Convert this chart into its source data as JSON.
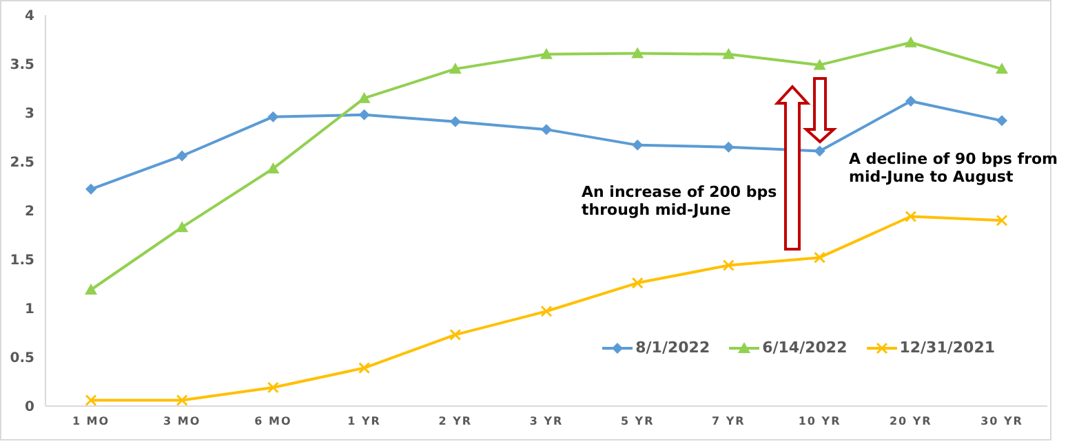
{
  "chart_data": {
    "type": "line",
    "categories": [
      "1 MO",
      "3 MO",
      "6 MO",
      "1 YR",
      "2 YR",
      "3 YR",
      "5 YR",
      "7 YR",
      "10 YR",
      "20 YR",
      "30 YR"
    ],
    "series": [
      {
        "name": "8/1/2022",
        "color": "#5b9bd5",
        "marker": "diamond",
        "values": [
          2.22,
          2.56,
          2.96,
          2.98,
          2.91,
          2.83,
          2.67,
          2.65,
          2.61,
          3.12,
          2.92
        ]
      },
      {
        "name": "6/14/2022",
        "color": "#92d050",
        "marker": "triangle",
        "values": [
          1.19,
          1.83,
          2.43,
          3.15,
          3.45,
          3.6,
          3.61,
          3.6,
          3.49,
          3.72,
          3.45
        ]
      },
      {
        "name": "12/31/2021",
        "color": "#ffc000",
        "marker": "cross",
        "values": [
          0.06,
          0.06,
          0.19,
          0.39,
          0.73,
          0.97,
          1.26,
          1.44,
          1.52,
          1.94,
          1.9
        ]
      }
    ],
    "ylim": [
      0,
      4
    ],
    "yticks": [
      0,
      0.5,
      1,
      1.5,
      2,
      2.5,
      3,
      3.5,
      4
    ],
    "grid": false,
    "legend": "bottom right",
    "annotations": [
      "An increase of 200 bps through mid-June",
      "A decline of 90 bps from mid-June to August"
    ]
  }
}
